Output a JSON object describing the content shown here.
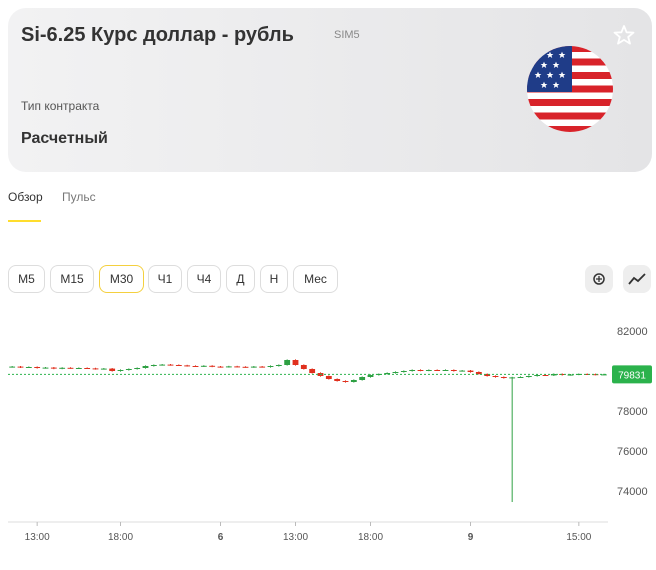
{
  "header": {
    "title": "Si-6.25 Курс доллар - рубль",
    "ticker": "SIM5",
    "contract_type_label": "Тип контракта",
    "contract_type": "Расчетный"
  },
  "tabs": [
    "Обзор",
    "Пульс"
  ],
  "active_tab": 0,
  "timeframes": [
    "М5",
    "М15",
    "М30",
    "Ч1",
    "Ч4",
    "Д",
    "Н",
    "Мес"
  ],
  "selected_timeframe": 2,
  "chart_data": {
    "type": "candlestick",
    "categories": [
      null,
      null,
      null,
      "13:00",
      null,
      null,
      null,
      null,
      null,
      null,
      null,
      null,
      null,
      "18:00",
      null,
      null,
      null,
      null,
      null,
      null,
      null,
      null,
      null,
      null,
      null,
      "6",
      null,
      null,
      null,
      null,
      null,
      null,
      null,
      null,
      "13:00",
      null,
      null,
      null,
      null,
      null,
      null,
      null,
      null,
      "18:00",
      null,
      null,
      null,
      null,
      null,
      null,
      null,
      null,
      null,
      null,
      null,
      "9",
      null,
      null,
      null,
      null,
      null,
      null,
      null,
      null,
      null,
      null,
      null,
      null,
      "15:00",
      null,
      null,
      null
    ],
    "open": [
      80200,
      80220,
      80180,
      80200,
      80150,
      80170,
      80120,
      80160,
      80140,
      80150,
      80130,
      80100,
      80120,
      80000,
      80050,
      80100,
      80150,
      80250,
      80300,
      80320,
      80300,
      80280,
      80250,
      80230,
      80260,
      80220,
      80200,
      80230,
      80210,
      80190,
      80220,
      80200,
      80250,
      80300,
      80550,
      80300,
      80100,
      79900,
      79750,
      79600,
      79500,
      79450,
      79550,
      79700,
      79800,
      79850,
      79900,
      79950,
      80000,
      80050,
      80020,
      80050,
      80030,
      80050,
      80000,
      80020,
      79950,
      79850,
      79750,
      79700,
      79650,
      79680,
      79700,
      79750,
      79800,
      79780,
      79850,
      79800,
      79820,
      79850,
      79840,
      79820
    ],
    "high": [
      80250,
      80250,
      80230,
      80230,
      80200,
      80200,
      80190,
      80190,
      80180,
      80180,
      80160,
      80150,
      80150,
      80080,
      80130,
      80180,
      80280,
      80330,
      80350,
      80350,
      80330,
      80310,
      80280,
      80290,
      80290,
      80250,
      80260,
      80260,
      80240,
      80250,
      80250,
      80280,
      80330,
      80580,
      80580,
      80330,
      80130,
      79930,
      79780,
      79630,
      79530,
      79580,
      79730,
      79830,
      79880,
      79930,
      79980,
      80030,
      80080,
      80080,
      80080,
      80080,
      80080,
      80080,
      80050,
      80050,
      79980,
      79880,
      79780,
      79730,
      79710,
      79730,
      79780,
      79830,
      79830,
      79880,
      79880,
      79850,
      79880,
      79880,
      79870,
      79861
    ],
    "low": [
      80170,
      80150,
      80150,
      80120,
      80120,
      80090,
      80090,
      80110,
      80110,
      80100,
      80070,
      80070,
      79970,
      79970,
      80020,
      80070,
      80120,
      80220,
      80270,
      80270,
      80250,
      80220,
      80200,
      80200,
      80190,
      80170,
      80170,
      80180,
      80160,
      80160,
      80170,
      80170,
      80220,
      80270,
      80270,
      80070,
      79870,
      79720,
      79570,
      79470,
      79420,
      79420,
      79520,
      79670,
      79770,
      79820,
      79870,
      79920,
      79970,
      79990,
      79990,
      80000,
      80000,
      79970,
      79970,
      79920,
      79820,
      79720,
      79670,
      79620,
      73450,
      79650,
      79670,
      79720,
      79750,
      79750,
      79770,
      79770,
      79790,
      79810,
      79790,
      79790
    ],
    "close": [
      80220,
      80180,
      80200,
      80150,
      80170,
      80120,
      80160,
      80140,
      80150,
      80130,
      80100,
      80120,
      80000,
      80050,
      80100,
      80150,
      80250,
      80300,
      80320,
      80300,
      80280,
      80250,
      80230,
      80260,
      80220,
      80200,
      80230,
      80210,
      80190,
      80220,
      80200,
      80250,
      80300,
      80550,
      80300,
      80100,
      79900,
      79750,
      79600,
      79500,
      79450,
      79550,
      79700,
      79800,
      79850,
      79900,
      79950,
      80000,
      80050,
      80020,
      80050,
      80030,
      80050,
      80000,
      80020,
      79950,
      79850,
      79750,
      79700,
      79650,
      79680,
      79700,
      79750,
      79800,
      79780,
      79850,
      79800,
      79820,
      79850,
      79840,
      79820,
      79831
    ],
    "up_color": "#2ea043",
    "down_color": "#e0301e",
    "last_price": 79831,
    "last_price_color": "#2bb24c",
    "ylim": [
      72450,
      83050
    ],
    "yticks": [
      74000,
      76000,
      78000,
      80000,
      82000
    ]
  }
}
